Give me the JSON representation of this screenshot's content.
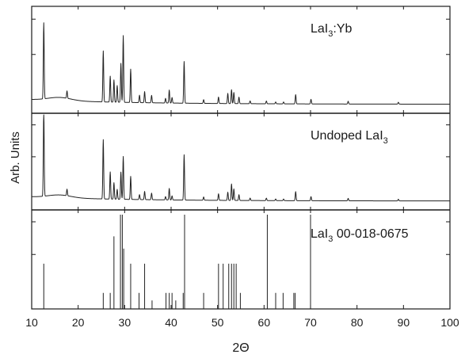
{
  "chart_data": {
    "type": "line",
    "xlabel": "2Θ",
    "ylabel": "Arb. Units",
    "xlim": [
      10,
      100
    ],
    "xticks": [
      10,
      20,
      30,
      40,
      50,
      60,
      70,
      80,
      90,
      100
    ],
    "grid": false,
    "panels": [
      {
        "label": {
          "main": "LaI",
          "sub": "3",
          "tail": ":Yb"
        },
        "kind": "trace",
        "baseline": 0.08,
        "peaks": [
          [
            12.6,
            0.82
          ],
          [
            17.6,
            0.08
          ],
          [
            25.4,
            0.55
          ],
          [
            26.9,
            0.28
          ],
          [
            27.7,
            0.24
          ],
          [
            28.4,
            0.18
          ],
          [
            29.2,
            0.42
          ],
          [
            29.7,
            0.72
          ],
          [
            31.3,
            0.36
          ],
          [
            33.2,
            0.08
          ],
          [
            34.3,
            0.12
          ],
          [
            35.8,
            0.08
          ],
          [
            38.8,
            0.05
          ],
          [
            39.6,
            0.14
          ],
          [
            40.2,
            0.06
          ],
          [
            42.8,
            0.45
          ],
          [
            47.0,
            0.04
          ],
          [
            50.2,
            0.07
          ],
          [
            52.2,
            0.11
          ],
          [
            53.0,
            0.15
          ],
          [
            53.5,
            0.12
          ],
          [
            54.6,
            0.07
          ],
          [
            57.0,
            0.03
          ],
          [
            60.5,
            0.03
          ],
          [
            62.5,
            0.02
          ],
          [
            64.2,
            0.02
          ],
          [
            66.8,
            0.1
          ],
          [
            70.1,
            0.05
          ],
          [
            78.1,
            0.03
          ],
          [
            88.9,
            0.02
          ]
        ]
      },
      {
        "label": {
          "main": "Undoped LaI",
          "sub": "3",
          "tail": ""
        },
        "kind": "trace",
        "baseline": 0.08,
        "peaks": [
          [
            12.6,
            1.05
          ],
          [
            17.6,
            0.08
          ],
          [
            25.4,
            0.72
          ],
          [
            26.9,
            0.33
          ],
          [
            27.7,
            0.2
          ],
          [
            28.4,
            0.12
          ],
          [
            29.2,
            0.33
          ],
          [
            29.7,
            0.52
          ],
          [
            31.3,
            0.28
          ],
          [
            33.2,
            0.06
          ],
          [
            34.3,
            0.1
          ],
          [
            35.8,
            0.08
          ],
          [
            38.8,
            0.04
          ],
          [
            39.6,
            0.14
          ],
          [
            40.2,
            0.05
          ],
          [
            42.8,
            0.55
          ],
          [
            47.0,
            0.04
          ],
          [
            50.2,
            0.08
          ],
          [
            52.2,
            0.1
          ],
          [
            53.0,
            0.2
          ],
          [
            53.5,
            0.14
          ],
          [
            54.6,
            0.07
          ],
          [
            57.0,
            0.03
          ],
          [
            60.5,
            0.03
          ],
          [
            62.5,
            0.02
          ],
          [
            64.2,
            0.02
          ],
          [
            66.8,
            0.11
          ],
          [
            70.1,
            0.05
          ],
          [
            78.1,
            0.03
          ],
          [
            88.9,
            0.02
          ]
        ]
      },
      {
        "label": {
          "main": "LaI",
          "sub": "3",
          "tail": " 00-018-0675"
        },
        "kind": "reference",
        "lines": [
          [
            12.6,
            0.48
          ],
          [
            25.4,
            0.17
          ],
          [
            26.9,
            0.17
          ],
          [
            27.7,
            0.77
          ],
          [
            29.1,
            1.0
          ],
          [
            29.5,
            1.0
          ],
          [
            29.8,
            0.64
          ],
          [
            31.3,
            0.48
          ],
          [
            33.1,
            0.17
          ],
          [
            34.3,
            0.48
          ],
          [
            35.9,
            0.09
          ],
          [
            38.9,
            0.17
          ],
          [
            39.6,
            0.17
          ],
          [
            40.2,
            0.17
          ],
          [
            41.0,
            0.09
          ],
          [
            42.6,
            0.17
          ],
          [
            42.9,
            1.0
          ],
          [
            47.0,
            0.17
          ],
          [
            50.2,
            0.48
          ],
          [
            51.2,
            0.48
          ],
          [
            52.4,
            0.48
          ],
          [
            53.0,
            0.48
          ],
          [
            53.5,
            0.48
          ],
          [
            54.0,
            0.48
          ],
          [
            54.9,
            0.17
          ],
          [
            60.7,
            1.0
          ],
          [
            62.5,
            0.17
          ],
          [
            64.1,
            0.17
          ],
          [
            66.4,
            0.17
          ],
          [
            66.7,
            0.17
          ],
          [
            70.0,
            1.0
          ]
        ]
      }
    ]
  }
}
